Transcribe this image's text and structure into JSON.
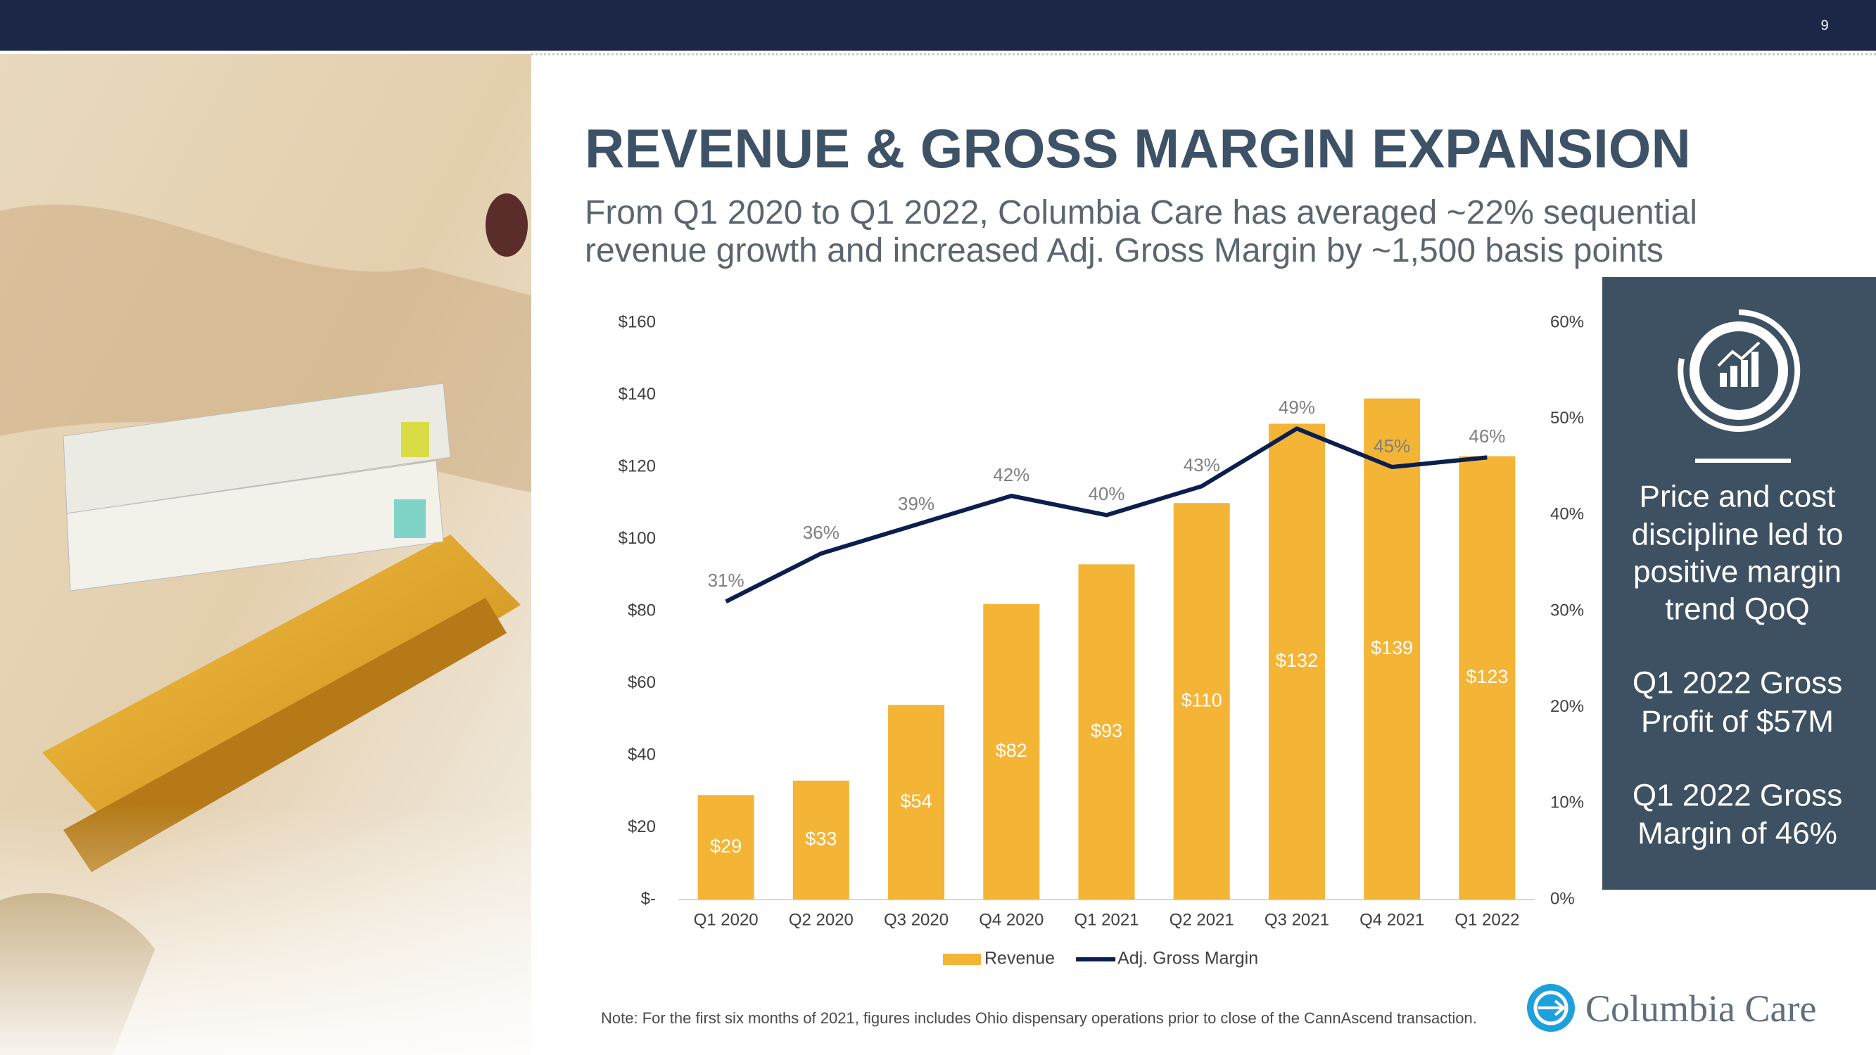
{
  "page_number": "9",
  "title": "REVENUE & GROSS MARGIN EXPANSION",
  "subtitle": [
    "From Q1 2020 to Q1 2022, Columbia Care has averaged ~22% sequential",
    "revenue growth and increased Adj. Gross Margin by ~1,500 basis points"
  ],
  "chart_data": {
    "type": "bar",
    "categories": [
      "Q1 2020",
      "Q2 2020",
      "Q3 2020",
      "Q4 2020",
      "Q1 2021",
      "Q2 2021",
      "Q3 2021",
      "Q4 2021",
      "Q1 2022"
    ],
    "series": [
      {
        "name": "Revenue",
        "color": "#f4b436",
        "values": [
          29,
          33,
          54,
          82,
          93,
          110,
          132,
          139,
          123
        ],
        "value_labels": [
          "$29",
          "$33",
          "$54",
          "$82",
          "$93",
          "$110",
          "$132",
          "$139",
          "$123"
        ]
      },
      {
        "name": "Adj. Gross Margin",
        "type": "line",
        "axis": "y2",
        "color": "#0b1f4f",
        "values": [
          31,
          36,
          39,
          42,
          40,
          43,
          49,
          45,
          46
        ],
        "value_labels": [
          "31%",
          "36%",
          "39%",
          "42%",
          "40%",
          "43%",
          "49%",
          "45%",
          "46%"
        ]
      }
    ],
    "ylim": [
      0,
      160
    ],
    "yticks": [
      {
        "value": 0,
        "label": "$-"
      },
      {
        "value": 20,
        "label": "$20"
      },
      {
        "value": 40,
        "label": "$40"
      },
      {
        "value": 60,
        "label": "$60"
      },
      {
        "value": 80,
        "label": "$80"
      },
      {
        "value": 100,
        "label": "$100"
      },
      {
        "value": 120,
        "label": "$120"
      },
      {
        "value": 140,
        "label": "$140"
      },
      {
        "value": 160,
        "label": "$160"
      }
    ],
    "y2lim": [
      0,
      60
    ],
    "y2ticks": [
      {
        "value": 0,
        "label": "0%"
      },
      {
        "value": 10,
        "label": "10%"
      },
      {
        "value": 20,
        "label": "20%"
      },
      {
        "value": 30,
        "label": "30%"
      },
      {
        "value": 40,
        "label": "40%"
      },
      {
        "value": 50,
        "label": "50%"
      },
      {
        "value": 60,
        "label": "60%"
      }
    ],
    "grid": false,
    "legend": "bottom"
  },
  "panel": [
    [
      "Price and cost",
      "discipline led to",
      "positive margin",
      "trend QoQ"
    ],
    [
      "Q1 2022 Gross",
      "Profit of $57M"
    ],
    [
      "Q1 2022 Gross",
      "Margin of 46%"
    ]
  ],
  "note": "Note: For the first six months of 2021, figures includes Ohio dispensary operations prior to close of the CannAscend transaction.",
  "logo": "Columbia Care"
}
